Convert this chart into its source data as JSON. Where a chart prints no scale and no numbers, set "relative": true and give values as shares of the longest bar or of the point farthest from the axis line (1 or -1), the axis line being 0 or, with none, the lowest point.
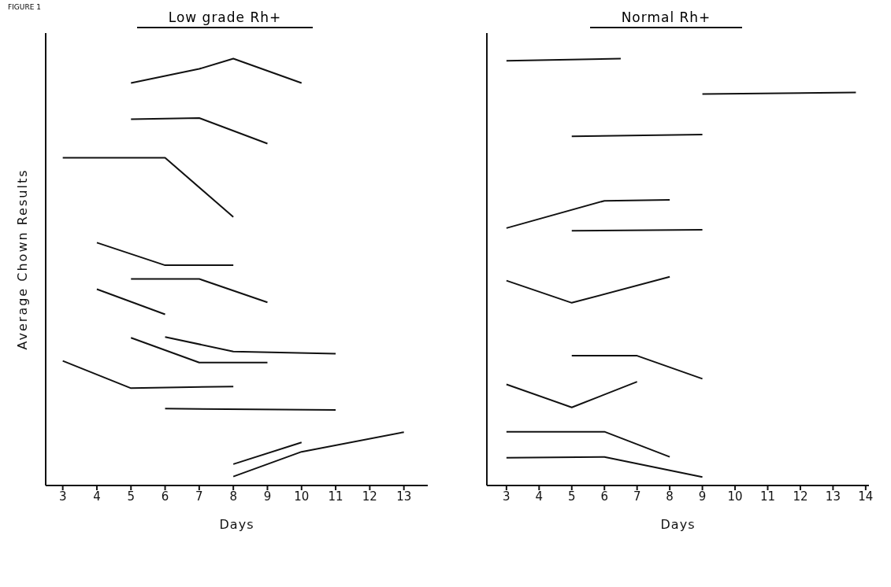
{
  "chart_data": [
    {
      "type": "line",
      "title": "Low grade Rh+",
      "xlabel": "Days",
      "ylabel": "Average Chown Results",
      "annotations": [
        "FIGURE 1"
      ],
      "relative": true,
      "xlim": [
        2.5,
        13.7
      ],
      "xticks": [
        3,
        4,
        5,
        6,
        7,
        8,
        9,
        10,
        11,
        12,
        13
      ],
      "series": [
        {
          "color": "#111111",
          "x": [
            5,
            7,
            8,
            10
          ],
          "values": [
            0.943,
            0.976,
            1.0,
            0.943
          ]
        },
        {
          "color": "#111111",
          "x": [
            5,
            7,
            9
          ],
          "values": [
            0.858,
            0.861,
            0.801
          ]
        },
        {
          "color": "#111111",
          "x": [
            3,
            6,
            8
          ],
          "values": [
            0.768,
            0.768,
            0.629
          ]
        },
        {
          "color": "#111111",
          "x": [
            4,
            6,
            8
          ],
          "values": [
            0.569,
            0.516,
            0.516
          ]
        },
        {
          "color": "#111111",
          "x": [
            5,
            7,
            9
          ],
          "values": [
            0.484,
            0.484,
            0.429
          ]
        },
        {
          "color": "#111111",
          "x": [
            4,
            6
          ],
          "values": [
            0.46,
            0.401
          ]
        },
        {
          "color": "#111111",
          "x": [
            6,
            8,
            11
          ],
          "values": [
            0.348,
            0.314,
            0.309
          ]
        },
        {
          "color": "#111111",
          "x": [
            5,
            7,
            9
          ],
          "values": [
            0.346,
            0.288,
            0.288
          ]
        },
        {
          "color": "#111111",
          "x": [
            3,
            5,
            8
          ],
          "values": [
            0.292,
            0.228,
            0.232
          ]
        },
        {
          "color": "#111111",
          "x": [
            6,
            11
          ],
          "values": [
            0.18,
            0.177
          ]
        },
        {
          "color": "#111111",
          "x": [
            8,
            10
          ],
          "values": [
            0.05,
            0.101
          ]
        },
        {
          "color": "#111111",
          "x": [
            8,
            10,
            13
          ],
          "values": [
            0.021,
            0.079,
            0.125
          ]
        }
      ]
    },
    {
      "type": "line",
      "title": "Normal Rh+",
      "xlabel": "Days",
      "relative": true,
      "xlim": [
        2.4,
        14.1
      ],
      "xticks": [
        3,
        4,
        5,
        6,
        7,
        8,
        9,
        10,
        11,
        12,
        13,
        14
      ],
      "series": [
        {
          "color": "#111111",
          "x": [
            3,
            6.5
          ],
          "values": [
            0.995,
            1.0
          ]
        },
        {
          "color": "#111111",
          "x": [
            9,
            13.7
          ],
          "values": [
            0.917,
            0.921
          ]
        },
        {
          "color": "#111111",
          "x": [
            5,
            9
          ],
          "values": [
            0.818,
            0.822
          ]
        },
        {
          "color": "#111111",
          "x": [
            3,
            6,
            8
          ],
          "values": [
            0.603,
            0.667,
            0.669
          ]
        },
        {
          "color": "#111111",
          "x": [
            5,
            9
          ],
          "values": [
            0.597,
            0.599
          ]
        },
        {
          "color": "#111111",
          "x": [
            3,
            5,
            8
          ],
          "values": [
            0.48,
            0.428,
            0.489
          ]
        },
        {
          "color": "#111111",
          "x": [
            5,
            7,
            9
          ],
          "values": [
            0.304,
            0.304,
            0.25
          ]
        },
        {
          "color": "#111111",
          "x": [
            3,
            5,
            7
          ],
          "values": [
            0.237,
            0.183,
            0.243
          ]
        },
        {
          "color": "#111111",
          "x": [
            3,
            6,
            8
          ],
          "values": [
            0.126,
            0.126,
            0.067
          ]
        },
        {
          "color": "#111111",
          "x": [
            3,
            6,
            9
          ],
          "values": [
            0.065,
            0.067,
            0.02
          ]
        }
      ]
    }
  ]
}
